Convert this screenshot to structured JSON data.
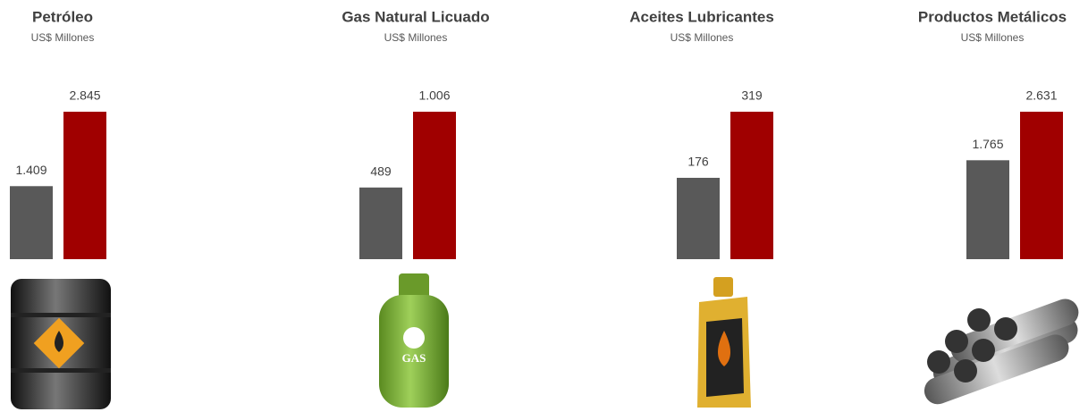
{
  "chart_data": [
    {
      "type": "bar",
      "title": "Petróleo",
      "subtitle": "US$ Millones",
      "values": [
        1409,
        2845
      ],
      "value_labels": [
        "1.409",
        "2.845"
      ],
      "colors": [
        "#595959",
        "#a00000"
      ]
    },
    {
      "type": "bar",
      "title": "Gas Natural Licuado",
      "subtitle": "US$ Millones",
      "values": [
        489,
        1006
      ],
      "value_labels": [
        "489",
        "1.006"
      ],
      "colors": [
        "#595959",
        "#a00000"
      ]
    },
    {
      "type": "bar",
      "title": "Aceites Lubricantes",
      "subtitle": "US$ Millones",
      "values": [
        176,
        319
      ],
      "value_labels": [
        "176",
        "319"
      ],
      "colors": [
        "#595959",
        "#a00000"
      ]
    },
    {
      "type": "bar",
      "title": "Productos Metálicos",
      "subtitle": "US$ Millones",
      "values": [
        1765,
        2631
      ],
      "value_labels": [
        "1.765",
        "2.631"
      ],
      "colors": [
        "#595959",
        "#a00000"
      ]
    }
  ]
}
